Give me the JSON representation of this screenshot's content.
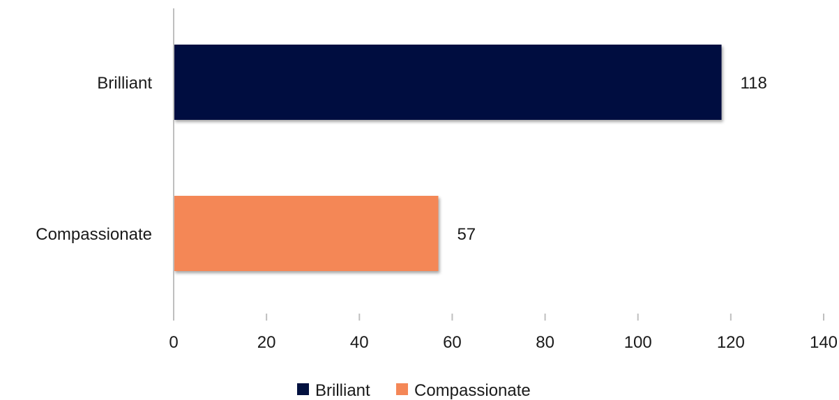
{
  "chart_data": {
    "type": "bar",
    "orientation": "horizontal",
    "categories": [
      "Brilliant",
      "Compassionate"
    ],
    "series": [
      {
        "name": "Brilliant",
        "values": [
          118,
          null
        ],
        "color": "#02113f"
      },
      {
        "name": "Compassionate",
        "values": [
          null,
          57
        ],
        "color": "#f48757"
      }
    ],
    "values": [
      118,
      57
    ],
    "data_labels": [
      "118",
      "57"
    ],
    "xlim": [
      0,
      140
    ],
    "xticks": [
      0,
      20,
      40,
      60,
      80,
      100,
      120,
      140
    ],
    "tick_labels": [
      "0",
      "20",
      "40",
      "60",
      "80",
      "100",
      "120",
      "140"
    ],
    "title": "",
    "xlabel": "",
    "ylabel": "",
    "grid": false,
    "legend": {
      "position": "bottom",
      "entries": [
        "Brilliant",
        "Compassionate"
      ]
    }
  },
  "colors": {
    "axis": "#bfbfbf",
    "text": "#1a1a1a",
    "shadow": "#9a9a9a"
  }
}
